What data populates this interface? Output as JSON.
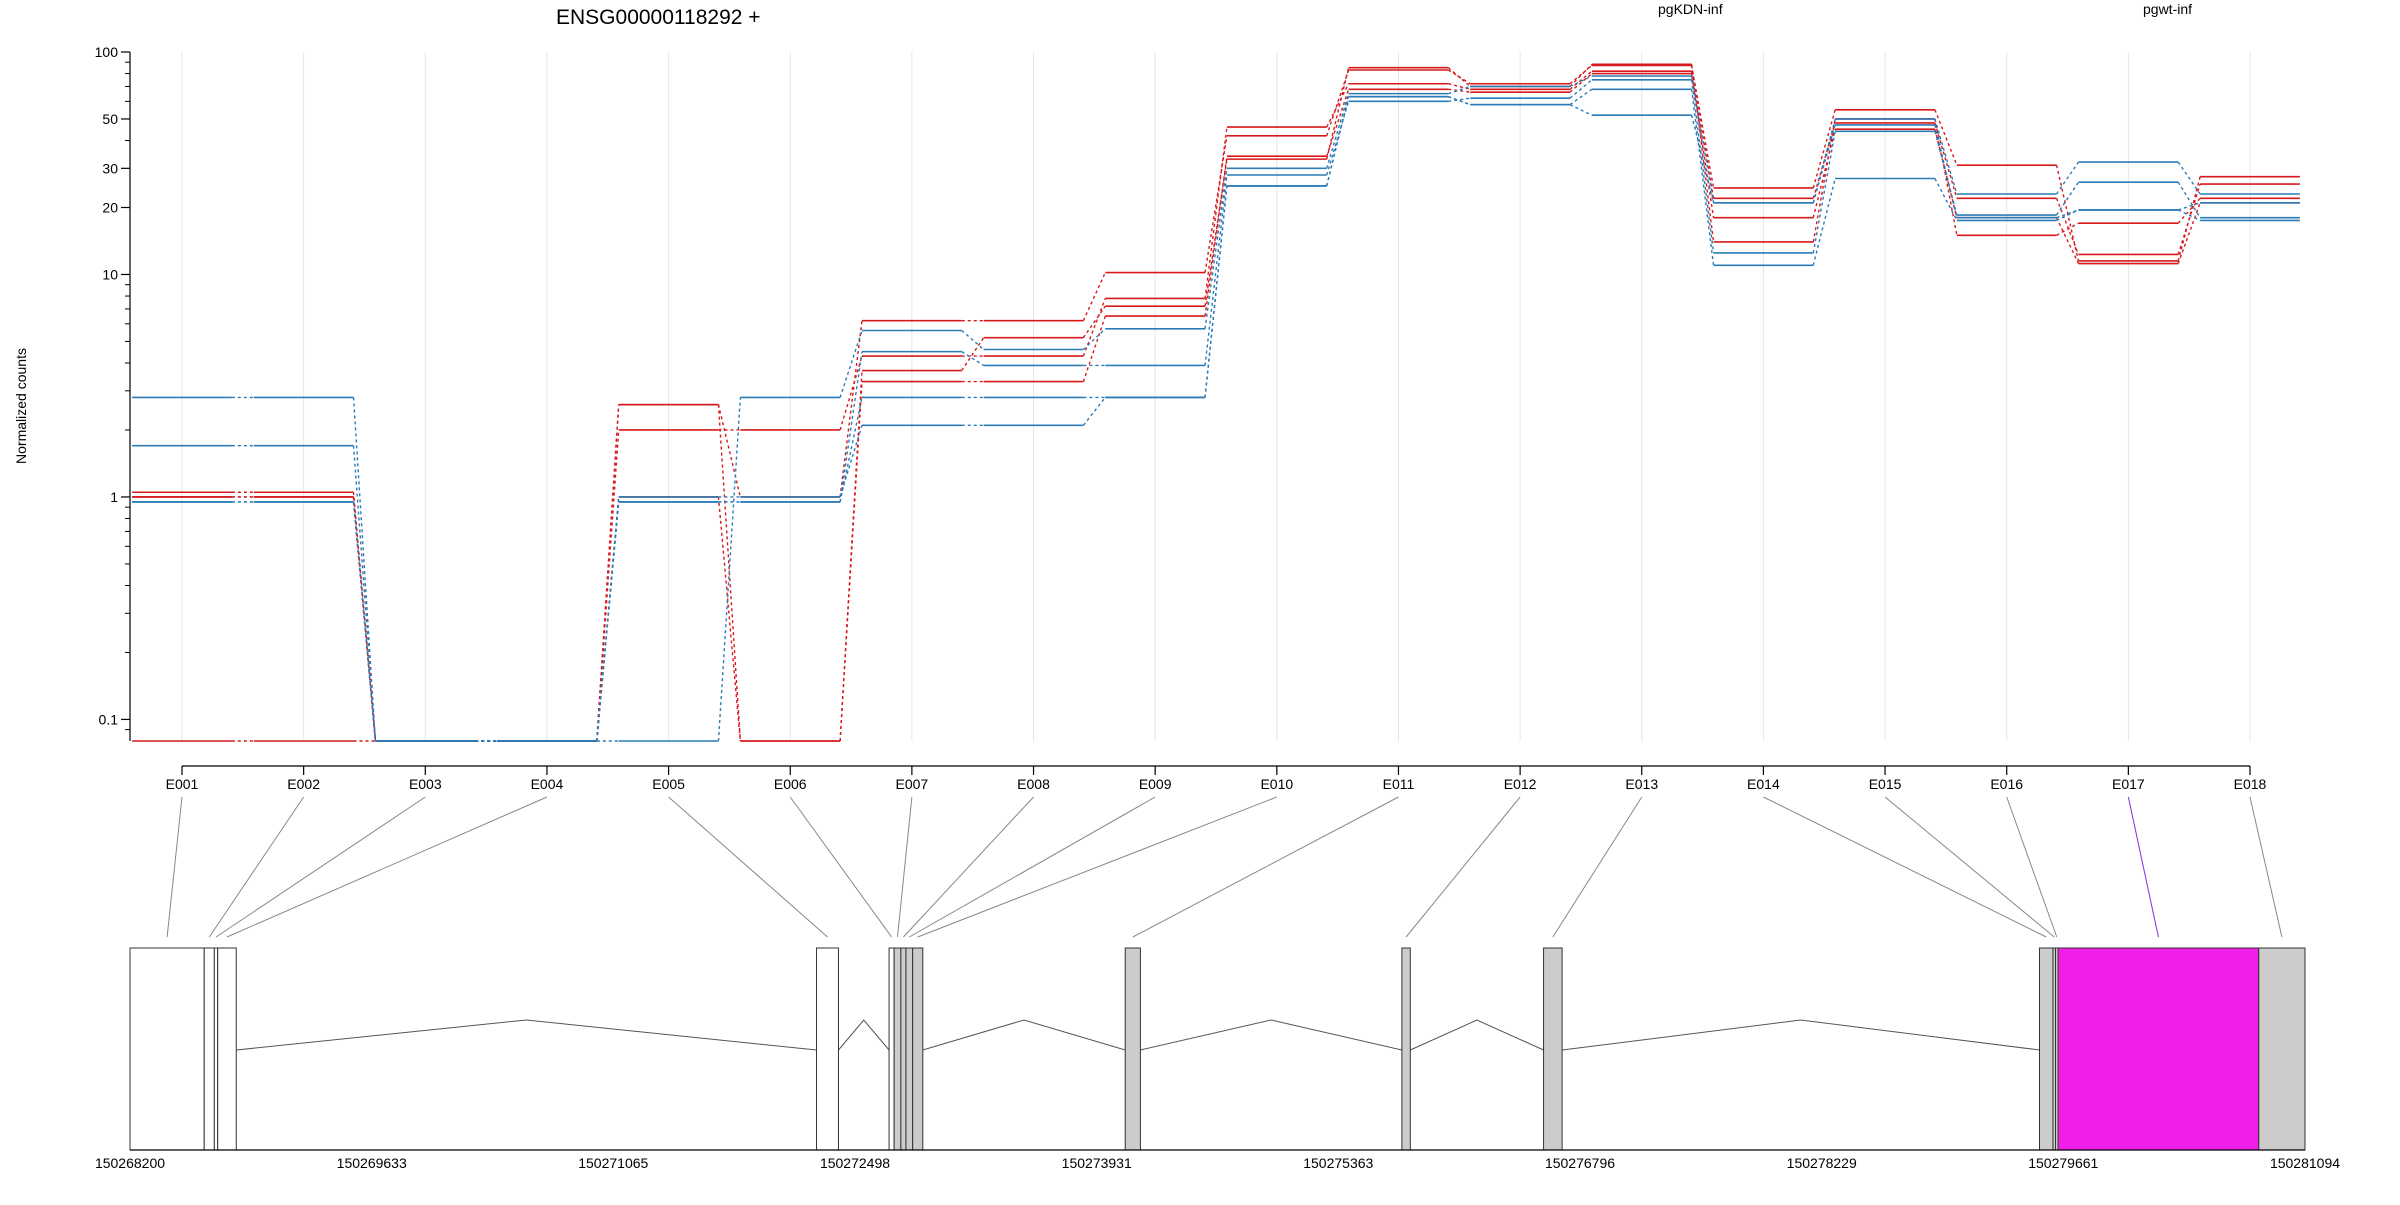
{
  "chart_data": {
    "type": "line",
    "title": "ENSG00000118292 +",
    "ylabel": "Normalized counts",
    "yscale": "log",
    "ylim": [
      0.08,
      100
    ],
    "yticks": [
      0.1,
      1,
      10,
      20,
      30,
      50,
      100
    ],
    "ytick_labels": [
      "0.1",
      "1",
      "10",
      "20",
      "30",
      "50",
      "100"
    ],
    "categories": [
      "E001",
      "E002",
      "E003",
      "E004",
      "E005",
      "E006",
      "E007",
      "E008",
      "E009",
      "E010",
      "E011",
      "E012",
      "E013",
      "E014",
      "E015",
      "E016",
      "E017",
      "E018"
    ],
    "legend": [
      {
        "name": "pgKDN-inf",
        "color": "#d7191c"
      },
      {
        "name": "pgwt-inf",
        "color": "#2c7bb6"
      }
    ],
    "colors": {
      "pgKDN-inf": "#d7191c",
      "pgwt-inf": "#2c7bb6",
      "highlight_exon": "#f01ee6",
      "exon_gray": "#cccccc"
    },
    "series": [
      {
        "group": "pgKDN-inf",
        "values": [
          1.05,
          1.05,
          0.08,
          0.08,
          2.6,
          1.0,
          6.2,
          6.2,
          10.2,
          42,
          83,
          72,
          87,
          24.5,
          55,
          31,
          11.5,
          27.5
        ]
      },
      {
        "group": "pgKDN-inf",
        "values": [
          0.08,
          0.08,
          0.08,
          0.08,
          2.0,
          2.0,
          4.3,
          4.3,
          7.8,
          46,
          72,
          68,
          82,
          22,
          48,
          22,
          12.3,
          25.5
        ]
      },
      {
        "group": "pgKDN-inf",
        "values": [
          1.0,
          1.0,
          0.08,
          0.08,
          1.0,
          0.08,
          3.3,
          3.3,
          6.5,
          34,
          68,
          66,
          80,
          18,
          45,
          18,
          11.2,
          21
        ]
      },
      {
        "group": "pgKDN-inf",
        "values": [
          1.0,
          1.0,
          0.08,
          0.08,
          2.6,
          0.08,
          3.7,
          5.2,
          7.2,
          33,
          85,
          70,
          88,
          14,
          50,
          15,
          17,
          22
        ]
      },
      {
        "group": "pgwt-inf",
        "values": [
          2.8,
          2.8,
          0.08,
          0.08,
          0.08,
          2.8,
          5.6,
          4.6,
          5.7,
          30,
          65,
          70,
          78,
          21,
          50,
          23,
          32,
          23
        ]
      },
      {
        "group": "pgwt-inf",
        "values": [
          1.7,
          1.7,
          0.08,
          0.08,
          0.95,
          0.95,
          4.5,
          3.9,
          3.9,
          28,
          60,
          62,
          75,
          12.5,
          44,
          18.5,
          26,
          18
        ]
      },
      {
        "group": "pgwt-inf",
        "values": [
          0.95,
          0.95,
          0.08,
          0.08,
          0.95,
          0.95,
          2.8,
          2.8,
          2.8,
          25,
          63,
          58,
          68,
          11,
          27,
          17.5,
          19.5,
          17.5
        ]
      },
      {
        "group": "pgwt-inf",
        "values": [
          0.95,
          0.95,
          0.08,
          0.08,
          1.0,
          1.0,
          2.1,
          2.1,
          2.8,
          25,
          63,
          58,
          52,
          21,
          47,
          18,
          19.5,
          21
        ]
      }
    ],
    "gene_model": {
      "coordinate_ticks": [
        150268200,
        150269633,
        150271065,
        150272498,
        150273931,
        150275363,
        150276796,
        150278229,
        150279661,
        150281094
      ],
      "coordinate_labels": [
        "150268200",
        "150269633",
        "150271065",
        "150272498",
        "150273931",
        "150275363",
        "150276796",
        "150278229",
        "150279661",
        "150281094"
      ],
      "exons": [
        {
          "id": "E001",
          "start": 150268200,
          "end": 150268640,
          "fill": "#ffffff"
        },
        {
          "id": "E002",
          "start": 150268640,
          "end": 150268700,
          "fill": "#ffffff"
        },
        {
          "id": "E003",
          "start": 150268700,
          "end": 150268720,
          "fill": "#ffffff"
        },
        {
          "id": "E004",
          "start": 150268720,
          "end": 150268830,
          "fill": "#ffffff"
        },
        {
          "id": "E005",
          "start": 150272270,
          "end": 150272400,
          "fill": "#ffffff"
        },
        {
          "id": "E006",
          "start": 150272700,
          "end": 150272730,
          "fill": "#ffffff"
        },
        {
          "id": "E007",
          "start": 150272730,
          "end": 150272770,
          "fill": "#cccccc"
        },
        {
          "id": "E008",
          "start": 150272770,
          "end": 150272800,
          "fill": "#cccccc"
        },
        {
          "id": "E009",
          "start": 150272800,
          "end": 150272840,
          "fill": "#cccccc"
        },
        {
          "id": "E010",
          "start": 150272840,
          "end": 150272900,
          "fill": "#cccccc"
        },
        {
          "id": "E011",
          "start": 150274100,
          "end": 150274190,
          "fill": "#cccccc"
        },
        {
          "id": "E012",
          "start": 150275740,
          "end": 150275790,
          "fill": "#cccccc"
        },
        {
          "id": "E013",
          "start": 150276580,
          "end": 150276690,
          "fill": "#cccccc"
        },
        {
          "id": "E014",
          "start": 150279520,
          "end": 150279600,
          "fill": "#cccccc"
        },
        {
          "id": "E015",
          "start": 150279600,
          "end": 150279615,
          "fill": "#cccccc"
        },
        {
          "id": "E016",
          "start": 150279615,
          "end": 150279630,
          "fill": "#cccccc"
        },
        {
          "id": "E017",
          "start": 150279630,
          "end": 150280820,
          "fill": "#f01ee6"
        },
        {
          "id": "E018",
          "start": 150280820,
          "end": 150281094,
          "fill": "#cccccc"
        }
      ]
    }
  }
}
